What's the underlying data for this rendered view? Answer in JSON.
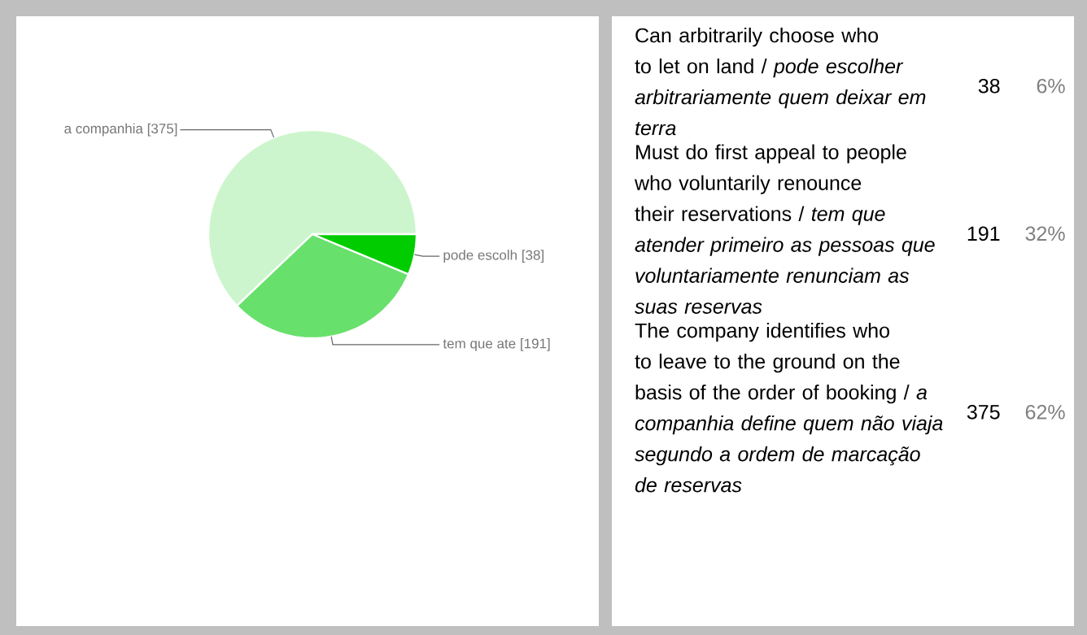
{
  "chart_data": {
    "type": "pie",
    "categories": [
      "a companhia",
      "tem que ate",
      "pode escolh"
    ],
    "values": [
      375,
      191,
      38
    ],
    "value_labels": [
      "[375]",
      "[191]",
      "[38]"
    ],
    "colors": [
      "#cdf5cd",
      "#68e06c",
      "#00cc00"
    ],
    "annotations": [
      "Can arbitrarily choose who to let on land  / *pode escolher arbitrariamente quem deixar em terra*",
      "38",
      "6%",
      "Must do first appeal to people who voluntarily renounce their reservations  / *tem que atender primeiro as pessoas que voluntariamente renunciam as suas reservas*",
      "191",
      "32%",
      "The company identifies who to leave to the ground on the basis of the order of booking / *a companhia define quem não viaja segundo a ordem de marcação de reservas*",
      "375",
      "62%"
    ]
  }
}
